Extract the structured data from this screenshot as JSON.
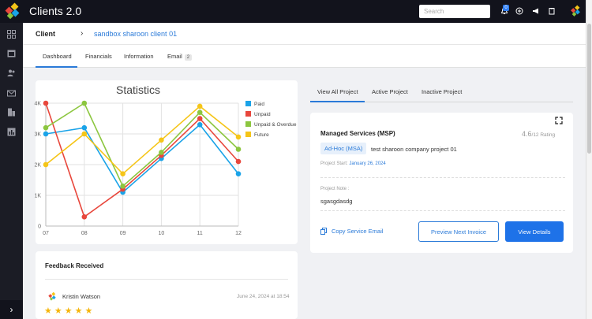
{
  "app": {
    "title": "Clients 2.0"
  },
  "topbar": {
    "search_placeholder": "Search",
    "notification_count": "0",
    "icons": [
      "bell-icon",
      "plus-circle-icon",
      "megaphone-icon",
      "clipboard-icon",
      "user-logo-icon"
    ]
  },
  "sidebar": {
    "icons": [
      "grid-icon",
      "calendar-icon",
      "users-icon",
      "mail-icon",
      "building-icon",
      "chart-icon"
    ],
    "toggle": "›"
  },
  "breadcrumb": {
    "root": "Client",
    "separator": "›",
    "current": "sandbox sharoon client 01"
  },
  "tabs": [
    {
      "label": "Dashboard",
      "active": true
    },
    {
      "label": "Financials"
    },
    {
      "label": "Information"
    },
    {
      "label": "Email",
      "count": "2"
    }
  ],
  "chart_data": {
    "type": "line",
    "title": "Statistics",
    "categories": [
      "07",
      "08",
      "09",
      "10",
      "11",
      "12"
    ],
    "yticks": [
      "0",
      "1K",
      "2K",
      "3K",
      "4K"
    ],
    "ylim": [
      0,
      4000
    ],
    "grid": true,
    "legend_position": "right",
    "series": [
      {
        "name": "Paid",
        "color": "#1aa3e8",
        "values": [
          3000,
          3200,
          1100,
          2200,
          3300,
          1700
        ]
      },
      {
        "name": "Unpaid",
        "color": "#e8473c",
        "values": [
          4000,
          300,
          1200,
          2300,
          3500,
          2100
        ]
      },
      {
        "name": "Unpaid & Overdue",
        "color": "#8cc63f",
        "values": [
          3200,
          4000,
          1300,
          2400,
          3700,
          2500
        ]
      },
      {
        "name": "Future",
        "color": "#f5c518",
        "values": [
          2000,
          3000,
          1700,
          2800,
          3900,
          2900
        ]
      }
    ]
  },
  "feedback": {
    "title": "Feedback Received",
    "name": "Kristin Watson",
    "date": "June 24, 2024 at 18:54",
    "stars": "★★★★★"
  },
  "project_tabs": [
    {
      "label": "View All Project",
      "active": true
    },
    {
      "label": "Active Project"
    },
    {
      "label": "Inactive Project"
    }
  ],
  "project": {
    "title": "Managed Services (MSP)",
    "rating_value": "4.6",
    "rating_suffix": "/12 Rating",
    "tag": "Ad-Hoc (MSA)",
    "name": "test sharoon company project 01",
    "start_label": "Project Start:",
    "start_date": "January 26, 2024",
    "note_label": "Project Note :",
    "note_value": "sgasgdasdg",
    "copy_label": "Copy Service Email",
    "preview_label": "Preview Next Invoice",
    "view_label": "View Details"
  }
}
